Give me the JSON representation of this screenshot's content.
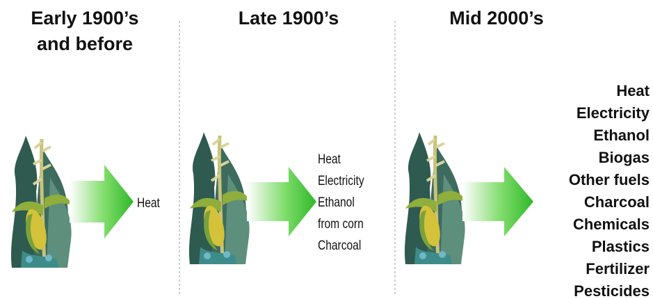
{
  "panels": [
    {
      "title": [
        "Early 1900’s",
        "and before"
      ],
      "outputs": [
        "Heat"
      ]
    },
    {
      "title": [
        "Late 1900’s"
      ],
      "outputs": [
        "Heat",
        "Electricity",
        "Ethanol",
        "from corn",
        "Charcoal"
      ]
    },
    {
      "title": [
        "Mid 2000’s"
      ],
      "outputs": [
        "Heat",
        "Electricity",
        "Ethanol",
        "Biogas",
        "Other fuels",
        "Charcoal",
        "Chemicals",
        "Plastics",
        "Fertilizer",
        "Pesticides"
      ]
    }
  ]
}
